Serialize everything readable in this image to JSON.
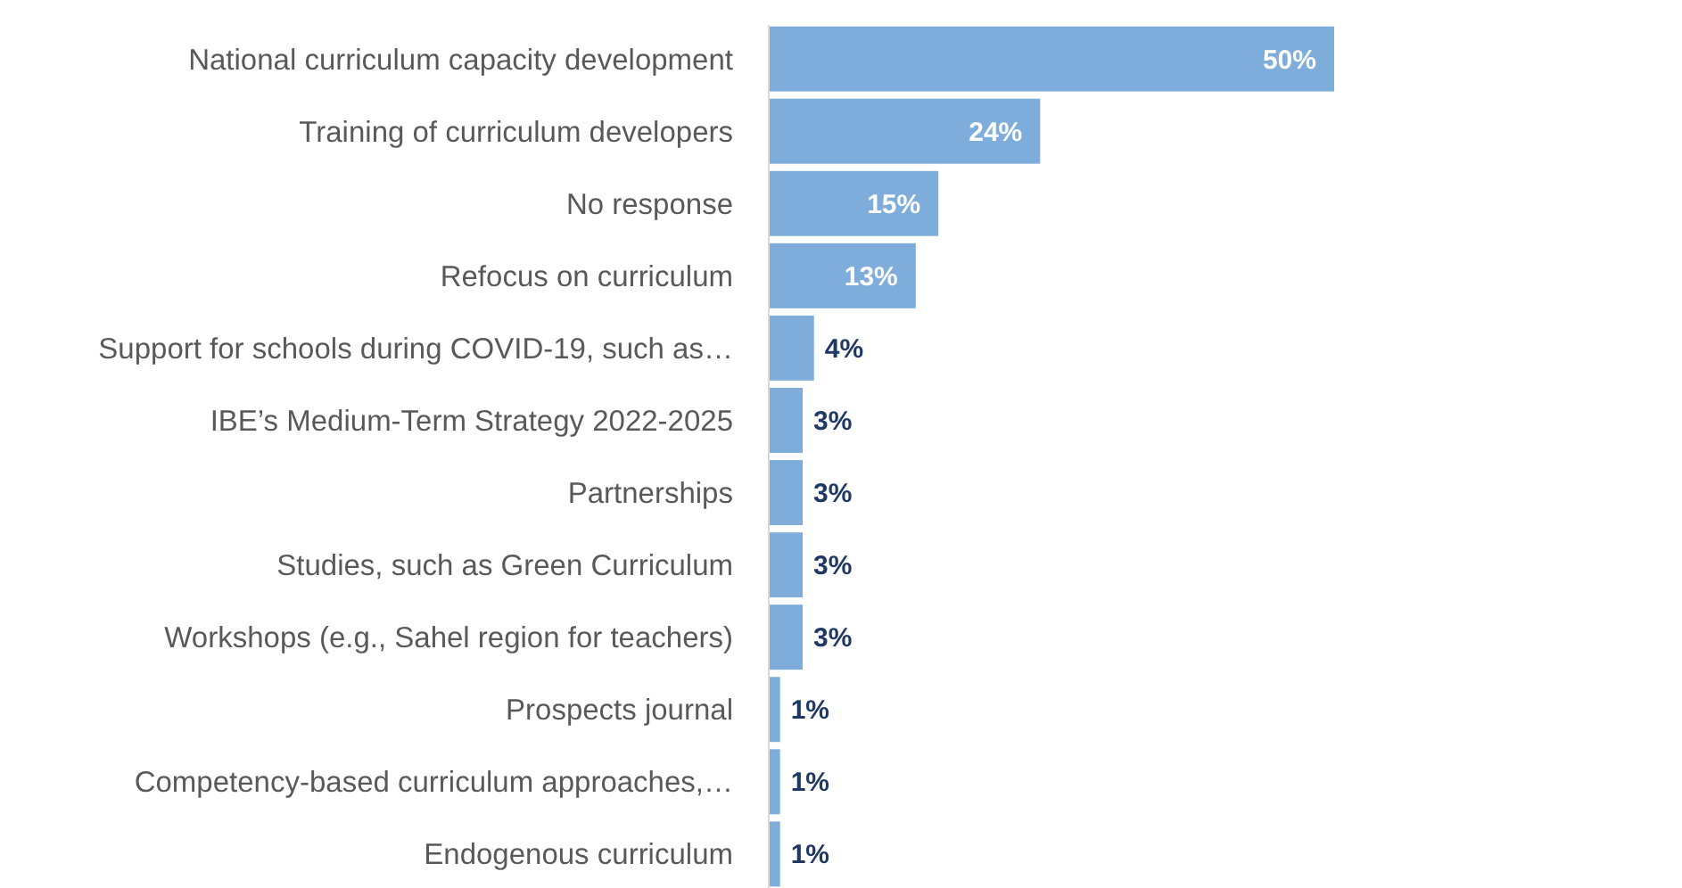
{
  "chart_data": {
    "type": "bar",
    "orientation": "horizontal",
    "color": "#7eaddc",
    "categories": [
      "National curriculum capacity development",
      "Training of curriculum developers",
      "No response",
      "Refocus on curriculum",
      "Support for schools during COVID-19, such as…",
      "IBE’s Medium-Term Strategy 2022-2025",
      "Partnerships",
      "Studies, such as Green Curriculum",
      "Workshops (e.g., Sahel region for teachers)",
      "Prospects journal",
      "Competency-based curriculum approaches,…",
      "Endogenous curriculum"
    ],
    "values": [
      50,
      24,
      15,
      13,
      4,
      3,
      3,
      3,
      3,
      1,
      1,
      1
    ],
    "value_labels": [
      "50%",
      "24%",
      "15%",
      "13%",
      "4%",
      "3%",
      "3%",
      "3%",
      "3%",
      "1%",
      "1%",
      "1%"
    ]
  }
}
